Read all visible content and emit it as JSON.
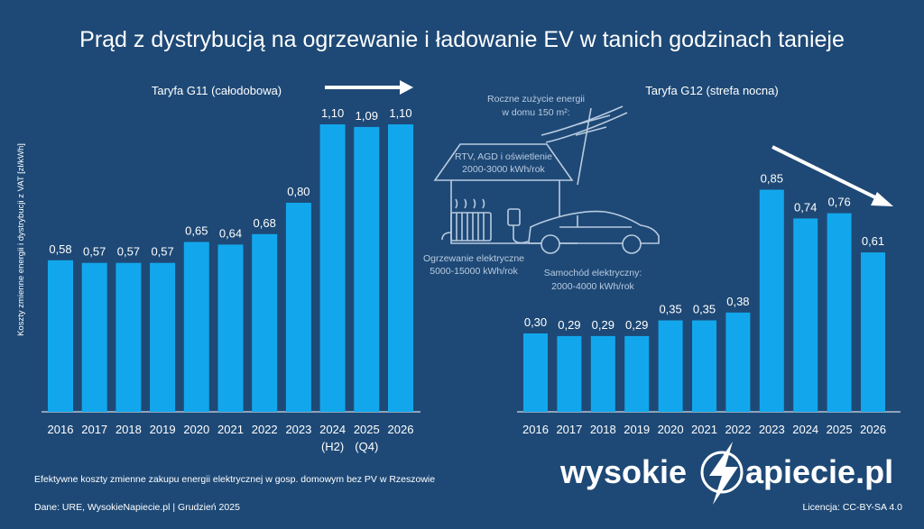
{
  "title": "Prąd z dystrybucją na ogrzewanie i ładowanie EV w tanich godzinach tanieje",
  "ylabel": "Koszty zmienne energii i dystrybucji z VAT [zł/kWh]",
  "colors": {
    "background": "#1e4976",
    "bar": "#12a7ec",
    "text": "#ffffff",
    "illustration": "#b9cbe0"
  },
  "chart_data": [
    {
      "type": "bar",
      "label": "Taryfa G11 (całodobowa)",
      "categories": [
        "2016",
        "2017",
        "2018",
        "2019",
        "2020",
        "2021",
        "2022",
        "2023",
        "2024",
        "2025",
        "2026"
      ],
      "sublabels": [
        "",
        "",
        "",
        "",
        "",
        "",
        "",
        "",
        "(H2)",
        "(Q4)",
        ""
      ],
      "values": [
        0.58,
        0.57,
        0.57,
        0.57,
        0.65,
        0.64,
        0.68,
        0.8,
        1.1,
        1.09,
        1.1
      ],
      "value_labels": [
        "0,58",
        "0,57",
        "0,57",
        "0,57",
        "0,65",
        "0,64",
        "0,68",
        "0,80",
        "1,10",
        "1,09",
        "1,10"
      ],
      "ylim": [
        0,
        1.2
      ],
      "trend_arrow": "right"
    },
    {
      "type": "bar",
      "label": "Taryfa G12 (strefa nocna)",
      "categories": [
        "2016",
        "2017",
        "2018",
        "2019",
        "2020",
        "2021",
        "2022",
        "2023",
        "2024",
        "2025",
        "2026"
      ],
      "values": [
        0.3,
        0.29,
        0.29,
        0.29,
        0.35,
        0.35,
        0.38,
        0.85,
        0.74,
        0.76,
        0.61
      ],
      "value_labels": [
        "0,30",
        "0,29",
        "0,29",
        "0,29",
        "0,35",
        "0,35",
        "0,38",
        "0,85",
        "0,74",
        "0,76",
        "0,61"
      ],
      "ylim": [
        0,
        1.2
      ],
      "trend_arrow": "down-right"
    }
  ],
  "illustration": {
    "consumption_title_1": "Roczne zużycie energii",
    "consumption_title_2": "w domu 150 m²:",
    "house_line_1": "RTV, AGD i oświetlenie",
    "house_line_2": "2000-3000 kWh/rok",
    "heating_line_1": "Ogrzewanie elektryczne",
    "heating_line_2": "5000-15000 kWh/rok",
    "ev_line_1": "Samochód elektryczny:",
    "ev_line_2": "2000-4000 kWh/rok"
  },
  "footer": {
    "note": "Efektywne koszty zmienne zakupu energii elektrycznej w gosp. domowym bez PV w Rzeszowie",
    "source": "Dane: URE, WysokieNapiecie.pl  | Grudzień 2025",
    "license": "Licencja: CC-BY-SA 4.0"
  },
  "brand": {
    "part1": "wysokie",
    "part2": "apiecie.pl",
    "logo_letter": "N"
  }
}
